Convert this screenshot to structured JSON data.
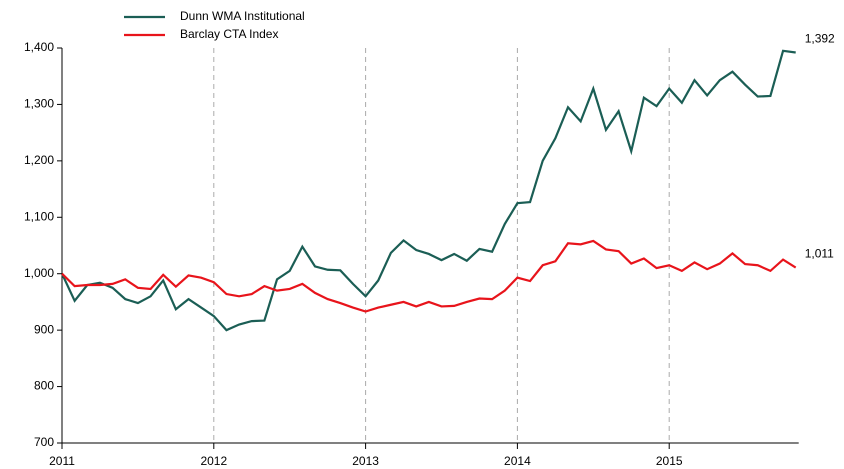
{
  "chart_data": {
    "type": "line",
    "categories": [
      "2011",
      null,
      null,
      null,
      null,
      null,
      null,
      null,
      null,
      null,
      null,
      null,
      "2012",
      null,
      null,
      null,
      null,
      null,
      null,
      null,
      null,
      null,
      null,
      null,
      "2013",
      null,
      null,
      null,
      null,
      null,
      null,
      null,
      null,
      null,
      null,
      null,
      "2014",
      null,
      null,
      null,
      null,
      null,
      null,
      null,
      null,
      null,
      null,
      null,
      "2015",
      null,
      null,
      null,
      null,
      null,
      null,
      null,
      null,
      null,
      null
    ],
    "series": [
      {
        "name": "Dunn WMA Institutional",
        "color": "#1b5e55",
        "values": [
          1000,
          952,
          980,
          984,
          975,
          955,
          948,
          960,
          988,
          937,
          955,
          940,
          925,
          900,
          910,
          916,
          917,
          990,
          1005,
          1048,
          1013,
          1007,
          1006,
          982,
          960,
          988,
          1037,
          1059,
          1042,
          1035,
          1024,
          1035,
          1023,
          1044,
          1039,
          1088,
          1125,
          1127,
          1200,
          1240,
          1295,
          1270,
          1328,
          1255,
          1288,
          1217,
          1312,
          1297,
          1328,
          1303,
          1343,
          1316,
          1343,
          1358,
          1335,
          1314,
          1315,
          1395,
          1392
        ],
        "value_labels": [
          null,
          null,
          null,
          null,
          null,
          null,
          null,
          null,
          null,
          null,
          null,
          null,
          null,
          null,
          null,
          null,
          null,
          null,
          null,
          null,
          null,
          null,
          null,
          null,
          null,
          null,
          null,
          null,
          null,
          null,
          null,
          null,
          null,
          null,
          null,
          null,
          null,
          null,
          null,
          null,
          null,
          null,
          null,
          null,
          null,
          null,
          null,
          null,
          null,
          null,
          null,
          null,
          null,
          null,
          null,
          null,
          null,
          null,
          "1,392"
        ]
      },
      {
        "name": "Barclay CTA Index",
        "color": "#e8141b",
        "values": [
          1000,
          978,
          980,
          980,
          982,
          990,
          975,
          973,
          998,
          977,
          997,
          993,
          985,
          964,
          960,
          964,
          978,
          970,
          973,
          982,
          966,
          955,
          948,
          940,
          933,
          940,
          945,
          950,
          942,
          950,
          942,
          943,
          950,
          956,
          955,
          970,
          993,
          987,
          1015,
          1022,
          1054,
          1052,
          1058,
          1043,
          1040,
          1018,
          1027,
          1010,
          1015,
          1005,
          1020,
          1008,
          1018,
          1036,
          1017,
          1015,
          1005,
          1025,
          1011
        ],
        "value_labels": [
          null,
          null,
          null,
          null,
          null,
          null,
          null,
          null,
          null,
          null,
          null,
          null,
          null,
          null,
          null,
          null,
          null,
          null,
          null,
          null,
          null,
          null,
          null,
          null,
          null,
          null,
          null,
          null,
          null,
          null,
          null,
          null,
          null,
          null,
          null,
          null,
          null,
          null,
          null,
          null,
          null,
          null,
          null,
          null,
          null,
          null,
          null,
          null,
          null,
          null,
          null,
          null,
          null,
          null,
          null,
          null,
          null,
          null,
          "1,011"
        ]
      }
    ],
    "ylim": [
      700,
      1400
    ],
    "yticks": [
      700,
      800,
      900,
      {
        "value": 1000,
        "label": "1,000"
      },
      {
        "value": 1100,
        "label": "1,100"
      },
      {
        "value": 1200,
        "label": "1,200"
      },
      {
        "value": 1300,
        "label": "1,300"
      },
      {
        "value": 1400,
        "label": "1,400"
      }
    ],
    "x_grid": true,
    "legend": "top-left"
  }
}
